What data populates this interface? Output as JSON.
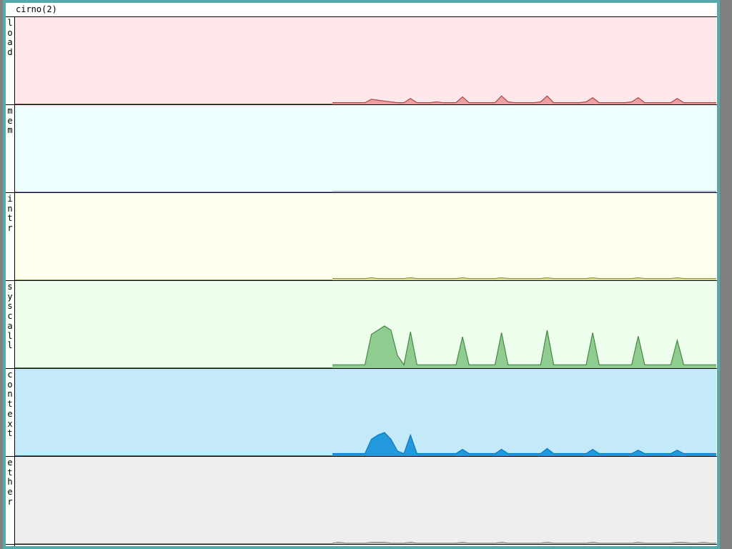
{
  "window": {
    "title": "cirno(2)"
  },
  "graphs": [
    {
      "label": "load",
      "background": "#ffe8ec",
      "color": "#b04848",
      "fill": "#e8a0a0",
      "ylim": [
        0,
        1
      ],
      "values": [
        0.02,
        0.02,
        0.02,
        0.02,
        0.02,
        0.02,
        0.06,
        0.05,
        0.04,
        0.03,
        0.02,
        0.02,
        0.07,
        0.02,
        0.02,
        0.02,
        0.03,
        0.02,
        0.02,
        0.02,
        0.09,
        0.02,
        0.02,
        0.02,
        0.02,
        0.02,
        0.1,
        0.03,
        0.02,
        0.02,
        0.02,
        0.02,
        0.03,
        0.1,
        0.02,
        0.02,
        0.02,
        0.02,
        0.02,
        0.03,
        0.08,
        0.02,
        0.02,
        0.02,
        0.02,
        0.02,
        0.03,
        0.08,
        0.02,
        0.02,
        0.02,
        0.02,
        0.02,
        0.07,
        0.02,
        0.02,
        0.02,
        0.02,
        0.02,
        0.02
      ]
    },
    {
      "label": "mem",
      "background": "#eeffff",
      "color": "#8888cc",
      "fill": "#c8c8ee",
      "ylim": [
        0,
        1
      ],
      "values": [
        0.01,
        0.01,
        0.01,
        0.01,
        0.01,
        0.01,
        0.01,
        0.01,
        0.01,
        0.01,
        0.01,
        0.01,
        0.01,
        0.01,
        0.01,
        0.01,
        0.01,
        0.01,
        0.01,
        0.01,
        0.01,
        0.01,
        0.01,
        0.01,
        0.01,
        0.01,
        0.01,
        0.01,
        0.01,
        0.01,
        0.01,
        0.01,
        0.01,
        0.01,
        0.01,
        0.01,
        0.01,
        0.01,
        0.01,
        0.01,
        0.01,
        0.01,
        0.01,
        0.01,
        0.01,
        0.01,
        0.01,
        0.01,
        0.01,
        0.01,
        0.01,
        0.01,
        0.01,
        0.01,
        0.01,
        0.01,
        0.01,
        0.01,
        0.01,
        0.01
      ]
    },
    {
      "label": "intr",
      "background": "#ffffee",
      "color": "#99994c",
      "fill": "#dddd99",
      "ylim": [
        0,
        1
      ],
      "values": [
        0.02,
        0.02,
        0.02,
        0.02,
        0.02,
        0.02,
        0.03,
        0.02,
        0.02,
        0.02,
        0.02,
        0.02,
        0.03,
        0.02,
        0.02,
        0.02,
        0.02,
        0.02,
        0.02,
        0.02,
        0.03,
        0.02,
        0.02,
        0.02,
        0.02,
        0.02,
        0.03,
        0.02,
        0.02,
        0.02,
        0.02,
        0.02,
        0.02,
        0.03,
        0.02,
        0.02,
        0.02,
        0.02,
        0.02,
        0.02,
        0.03,
        0.02,
        0.02,
        0.02,
        0.02,
        0.02,
        0.02,
        0.03,
        0.02,
        0.02,
        0.02,
        0.02,
        0.02,
        0.03,
        0.02,
        0.02,
        0.02,
        0.02,
        0.02,
        0.02
      ]
    },
    {
      "label": "syscall",
      "background": "#eeffee",
      "color": "#448844",
      "fill": "#8fcc8f",
      "ylim": [
        0,
        1
      ],
      "values": [
        0.04,
        0.04,
        0.04,
        0.04,
        0.04,
        0.04,
        0.4,
        0.45,
        0.5,
        0.45,
        0.15,
        0.04,
        0.43,
        0.04,
        0.04,
        0.04,
        0.04,
        0.04,
        0.04,
        0.04,
        0.37,
        0.04,
        0.04,
        0.04,
        0.04,
        0.04,
        0.42,
        0.04,
        0.04,
        0.04,
        0.04,
        0.04,
        0.04,
        0.45,
        0.04,
        0.04,
        0.04,
        0.04,
        0.04,
        0.04,
        0.42,
        0.04,
        0.04,
        0.04,
        0.04,
        0.04,
        0.04,
        0.38,
        0.04,
        0.04,
        0.04,
        0.04,
        0.04,
        0.33,
        0.04,
        0.04,
        0.04,
        0.04,
        0.04,
        0.04
      ]
    },
    {
      "label": "context",
      "background": "#c4eaf9",
      "color": "#1177bb",
      "fill": "#2299dd",
      "ylim": [
        0,
        1
      ],
      "values": [
        0.03,
        0.03,
        0.03,
        0.03,
        0.03,
        0.03,
        0.2,
        0.25,
        0.28,
        0.2,
        0.06,
        0.03,
        0.25,
        0.03,
        0.03,
        0.03,
        0.03,
        0.03,
        0.03,
        0.03,
        0.08,
        0.03,
        0.03,
        0.03,
        0.03,
        0.03,
        0.08,
        0.03,
        0.03,
        0.03,
        0.03,
        0.03,
        0.03,
        0.09,
        0.03,
        0.03,
        0.03,
        0.03,
        0.03,
        0.03,
        0.08,
        0.03,
        0.03,
        0.03,
        0.03,
        0.03,
        0.03,
        0.07,
        0.03,
        0.03,
        0.03,
        0.03,
        0.03,
        0.07,
        0.03,
        0.03,
        0.03,
        0.03,
        0.03,
        0.03
      ]
    },
    {
      "label": "ether",
      "background": "#eeeeee",
      "color": "#888888",
      "fill": "#cccccc",
      "ylim": [
        0,
        1
      ],
      "values": [
        0.01,
        0.02,
        0.01,
        0.01,
        0.01,
        0.01,
        0.02,
        0.02,
        0.02,
        0.01,
        0.01,
        0.01,
        0.02,
        0.01,
        0.01,
        0.01,
        0.01,
        0.01,
        0.01,
        0.01,
        0.02,
        0.01,
        0.01,
        0.01,
        0.01,
        0.01,
        0.02,
        0.01,
        0.01,
        0.01,
        0.01,
        0.01,
        0.01,
        0.02,
        0.01,
        0.01,
        0.01,
        0.01,
        0.01,
        0.01,
        0.02,
        0.01,
        0.01,
        0.01,
        0.01,
        0.01,
        0.01,
        0.02,
        0.01,
        0.01,
        0.01,
        0.01,
        0.01,
        0.02,
        0.02,
        0.01,
        0.01,
        0.02,
        0.01,
        0.01
      ]
    }
  ]
}
